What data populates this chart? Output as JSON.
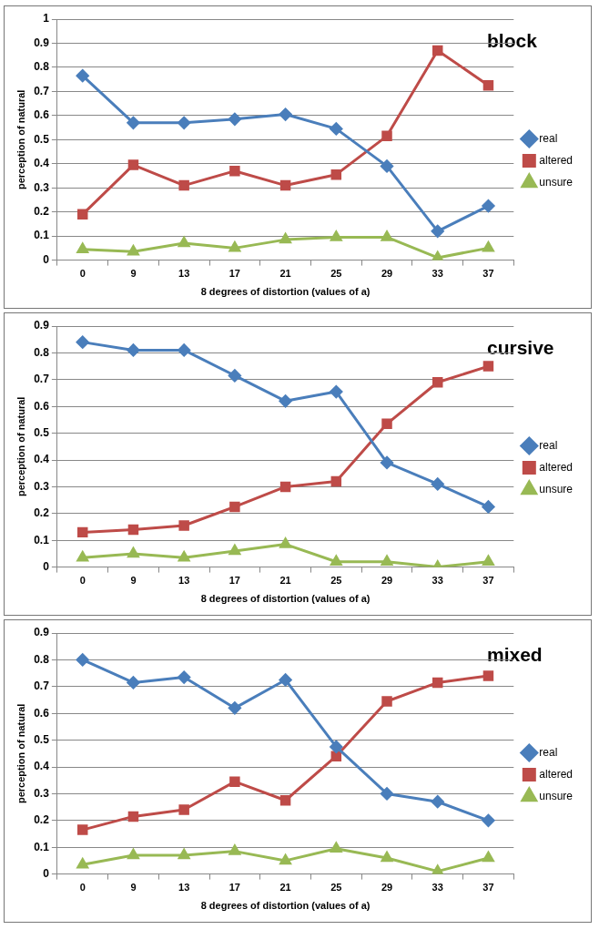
{
  "chart_data": [
    {
      "type": "line",
      "title": "block",
      "xlabel": "8 degrees of distortion (values of a)",
      "ylabel": "perception of natural",
      "categories": [
        "0",
        "9",
        "13",
        "17",
        "21",
        "25",
        "29",
        "33",
        "37"
      ],
      "ylim": [
        0,
        1
      ],
      "yticks": [
        0,
        0.1,
        0.2,
        0.3,
        0.4,
        0.5,
        0.6,
        0.7,
        0.8,
        0.9,
        1
      ],
      "grid": "y",
      "legend": "right",
      "series": [
        {
          "name": "real",
          "color": "#4a7ebb",
          "marker": "diamond",
          "values": [
            0.765,
            0.57,
            0.57,
            0.585,
            0.605,
            0.545,
            0.39,
            0.12,
            0.225
          ]
        },
        {
          "name": "altered",
          "color": "#be4b48",
          "marker": "square",
          "values": [
            0.19,
            0.395,
            0.31,
            0.37,
            0.31,
            0.355,
            0.515,
            0.87,
            0.725
          ]
        },
        {
          "name": "unsure",
          "color": "#98b954",
          "marker": "triangle",
          "values": [
            0.045,
            0.035,
            0.07,
            0.05,
            0.085,
            0.095,
            0.095,
            0.01,
            0.05
          ]
        }
      ]
    },
    {
      "type": "line",
      "title": "cursive",
      "xlabel": "8 degrees of distortion (values of a)",
      "ylabel": "perception of natural",
      "categories": [
        "0",
        "9",
        "13",
        "17",
        "21",
        "25",
        "29",
        "33",
        "37"
      ],
      "ylim": [
        0,
        0.9
      ],
      "yticks": [
        0,
        0.1,
        0.2,
        0.3,
        0.4,
        0.5,
        0.6,
        0.7,
        0.8,
        0.9
      ],
      "grid": "y",
      "legend": "right",
      "series": [
        {
          "name": "real",
          "color": "#4a7ebb",
          "marker": "diamond",
          "values": [
            0.84,
            0.81,
            0.81,
            0.715,
            0.62,
            0.655,
            0.39,
            0.31,
            0.225
          ]
        },
        {
          "name": "altered",
          "color": "#be4b48",
          "marker": "square",
          "values": [
            0.13,
            0.14,
            0.155,
            0.225,
            0.3,
            0.32,
            0.535,
            0.69,
            0.75
          ]
        },
        {
          "name": "unsure",
          "color": "#98b954",
          "marker": "triangle",
          "values": [
            0.035,
            0.05,
            0.035,
            0.06,
            0.085,
            0.02,
            0.02,
            0,
            0.02
          ]
        }
      ]
    },
    {
      "type": "line",
      "title": "mixed",
      "xlabel": "8 degrees of distortion (values of a)",
      "ylabel": "perception of natural",
      "categories": [
        "0",
        "9",
        "13",
        "17",
        "21",
        "25",
        "29",
        "33",
        "37"
      ],
      "ylim": [
        0,
        0.9
      ],
      "yticks": [
        0,
        0.1,
        0.2,
        0.3,
        0.4,
        0.5,
        0.6,
        0.7,
        0.8,
        0.9
      ],
      "grid": "y",
      "legend": "right",
      "series": [
        {
          "name": "real",
          "color": "#4a7ebb",
          "marker": "diamond",
          "values": [
            0.8,
            0.715,
            0.735,
            0.62,
            0.725,
            0.475,
            0.3,
            0.27,
            0.2
          ]
        },
        {
          "name": "altered",
          "color": "#be4b48",
          "marker": "square",
          "values": [
            0.165,
            0.215,
            0.24,
            0.345,
            0.275,
            0.44,
            0.645,
            0.715,
            0.74
          ]
        },
        {
          "name": "unsure",
          "color": "#98b954",
          "marker": "triangle",
          "values": [
            0.035,
            0.07,
            0.07,
            0.085,
            0.05,
            0.095,
            0.06,
            0.01,
            0.06
          ]
        }
      ]
    }
  ]
}
